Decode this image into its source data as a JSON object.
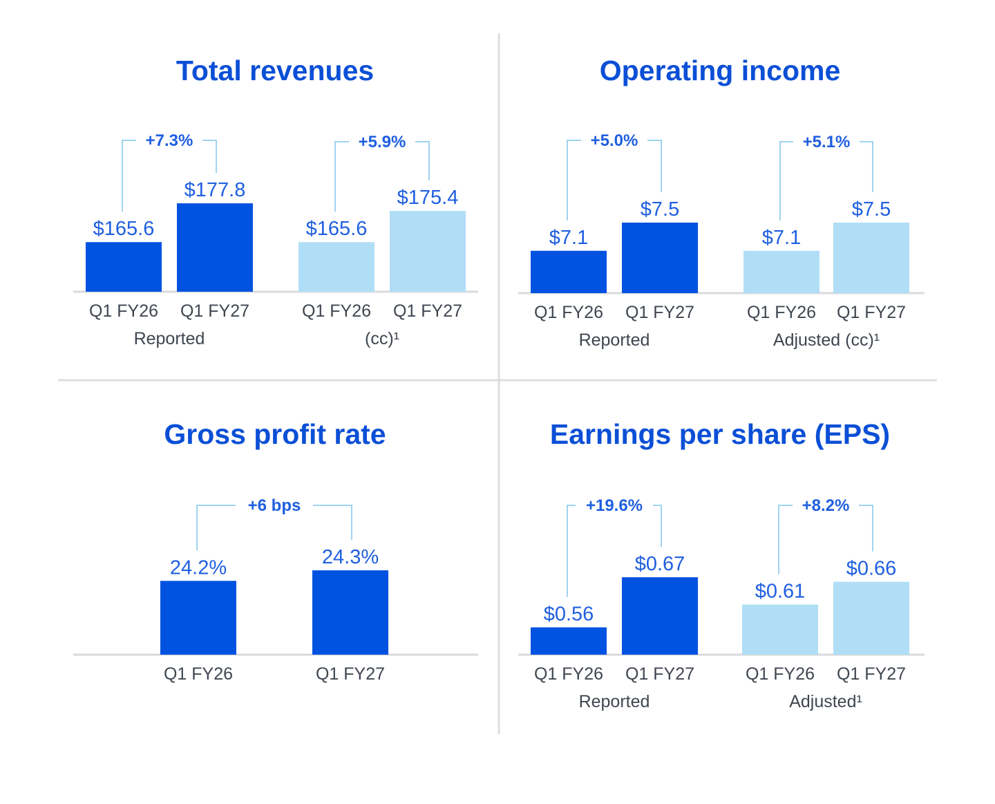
{
  "colors": {
    "dark_bar": "#0052e0",
    "light_bar": "#b0def6",
    "title": "#0b4fd6",
    "label": "#1f5fe0",
    "bracket": "#9fd3ef"
  },
  "chart_data": [
    {
      "type": "bar",
      "title": "Total revenues",
      "groups": [
        {
          "name": "Reported",
          "categories": [
            "Q1 FY26",
            "Q1 FY27"
          ],
          "values": [
            165.6,
            177.8
          ],
          "labels": [
            "$165.6",
            "$177.8"
          ],
          "change": "+7.3%",
          "shade": "dark"
        },
        {
          "name": "(cc)¹",
          "categories": [
            "Q1 FY26",
            "Q1 FY27"
          ],
          "values": [
            165.6,
            175.4
          ],
          "labels": [
            "$165.6",
            "$175.4"
          ],
          "change": "+5.9%",
          "shade": "light"
        }
      ]
    },
    {
      "type": "bar",
      "title": "Operating income",
      "groups": [
        {
          "name": "Reported",
          "categories": [
            "Q1 FY26",
            "Q1 FY27"
          ],
          "values": [
            7.1,
            7.5
          ],
          "labels": [
            "$7.1",
            "$7.5"
          ],
          "change": "+5.0%",
          "shade": "dark"
        },
        {
          "name": "Adjusted (cc)¹",
          "categories": [
            "Q1 FY26",
            "Q1 FY27"
          ],
          "values": [
            7.1,
            7.5
          ],
          "labels": [
            "$7.1",
            "$7.5"
          ],
          "change": "+5.1%",
          "shade": "light"
        }
      ]
    },
    {
      "type": "bar",
      "title": "Gross profit rate",
      "groups": [
        {
          "name": "",
          "categories": [
            "Q1 FY26",
            "Q1 FY27"
          ],
          "values": [
            24.2,
            24.3
          ],
          "labels": [
            "24.2%",
            "24.3%"
          ],
          "change": "+6 bps",
          "shade": "dark"
        }
      ]
    },
    {
      "type": "bar",
      "title": "Earnings per share (EPS)",
      "groups": [
        {
          "name": "Reported",
          "categories": [
            "Q1 FY26",
            "Q1 FY27"
          ],
          "values": [
            0.56,
            0.67
          ],
          "labels": [
            "$0.56",
            "$0.67"
          ],
          "change": "+19.6%",
          "shade": "dark"
        },
        {
          "name": "Adjusted¹",
          "categories": [
            "Q1 FY26",
            "Q1 FY27"
          ],
          "values": [
            0.61,
            0.66
          ],
          "labels": [
            "$0.61",
            "$0.66"
          ],
          "change": "+8.2%",
          "shade": "light"
        }
      ]
    }
  ]
}
